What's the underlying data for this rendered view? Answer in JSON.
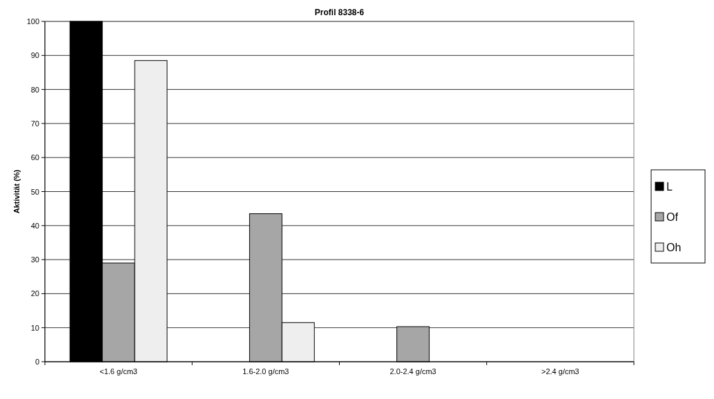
{
  "chart_data": {
    "type": "bar",
    "title": "Profil 8338-6",
    "ylabel": "Aktivität (%)",
    "categories": [
      "<1.6 g/cm3",
      "1.6-2.0 g/cm3",
      "2.0-2.4 g/cm3",
      ">2.4 g/cm3"
    ],
    "series": [
      {
        "name": "L",
        "color": "#000000",
        "values": [
          100,
          0,
          0,
          0
        ]
      },
      {
        "name": "Of",
        "color": "#a6a6a6",
        "values": [
          29,
          43.5,
          10.3,
          0
        ]
      },
      {
        "name": "Oh",
        "color": "#eeeeee",
        "values": [
          88.5,
          11.5,
          0,
          0
        ]
      }
    ],
    "ylim": [
      0,
      100
    ],
    "yticks": [
      0,
      10,
      20,
      30,
      40,
      50,
      60,
      70,
      80,
      90,
      100
    ],
    "grid": "y",
    "legend": "right"
  }
}
